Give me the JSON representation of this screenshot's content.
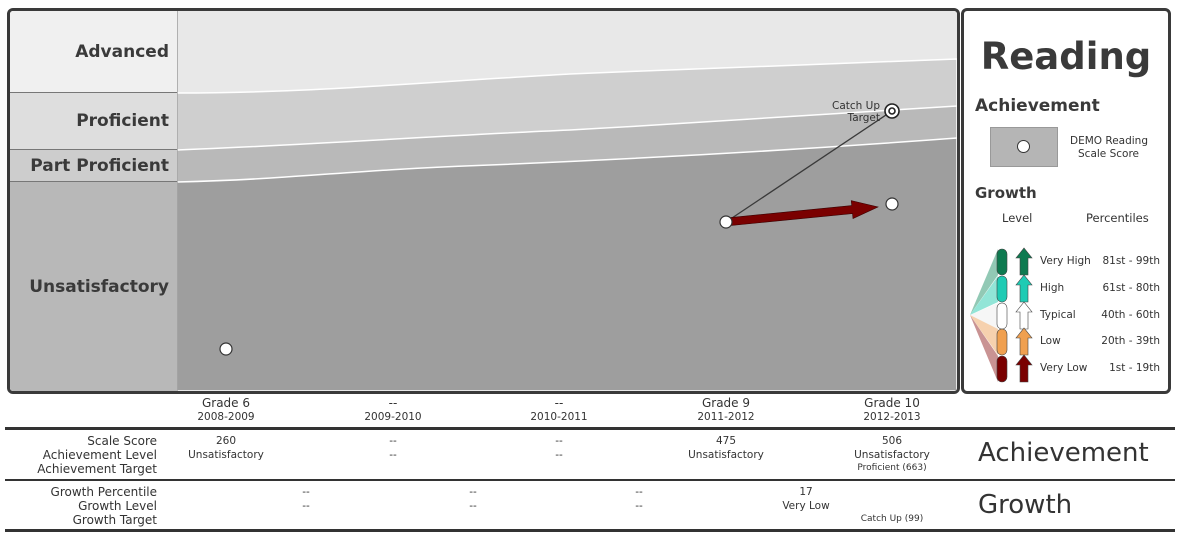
{
  "chart_data": {
    "type": "area",
    "title": "Reading",
    "bands": [
      {
        "name": "Advanced",
        "color": "#e8e8e8"
      },
      {
        "name": "Proficient",
        "color": "#cfcfcf"
      },
      {
        "name": "Part Proficient",
        "color": "#b9b9b9"
      },
      {
        "name": "Unsatisfactory",
        "color": "#9e9e9e"
      }
    ],
    "columns": [
      {
        "grade": "Grade 6",
        "year": "2008-2009"
      },
      {
        "grade": "--",
        "year": "2009-2010"
      },
      {
        "grade": "--",
        "year": "2010-2011"
      },
      {
        "grade": "Grade 9",
        "year": "2011-2012"
      },
      {
        "grade": "Grade 10",
        "year": "2012-2013"
      }
    ],
    "scores": [
      {
        "column": 0,
        "score": 260
      },
      {
        "column": 3,
        "score": 475
      },
      {
        "column": 4,
        "score": 506
      }
    ],
    "catch_up_target": {
      "column": 4,
      "score": 663,
      "label": "Catch Up Target"
    },
    "growth_arrow": {
      "from_column": 3,
      "to_column": 4,
      "level": "Very Low",
      "color": "#7a0000"
    }
  },
  "legend": {
    "title": "Reading",
    "achievement_heading": "Achievement",
    "score_label_line1": "DEMO Reading",
    "score_label_line2": "Scale Score",
    "growth_heading": "Growth",
    "level_header": "Level",
    "percentiles_header": "Percentiles",
    "levels": [
      {
        "name": "Very High",
        "range": "81st  - 99th",
        "color": "#0e7a50"
      },
      {
        "name": "High",
        "range": "61st - 80th",
        "color": "#1fcbb4"
      },
      {
        "name": "Typical",
        "range": "40th - 60th",
        "color": "#ffffff"
      },
      {
        "name": "Low",
        "range": "20th - 39th",
        "color": "#f0a050"
      },
      {
        "name": "Very Low",
        "range": "1st - 19th",
        "color": "#7a0000"
      }
    ]
  },
  "table": {
    "achievement_title": "Achievement",
    "growth_title": "Growth",
    "achievement_rows": [
      "Scale Score",
      "Achievement Level",
      "Achievement Target"
    ],
    "growth_rows": [
      "Growth Percentile",
      "Growth Level",
      "Growth Target"
    ],
    "scale_score": [
      "260",
      "--",
      "--",
      "475",
      "506"
    ],
    "achievement_level": [
      "Unsatisfactory",
      "--",
      "--",
      "Unsatisfactory",
      "Unsatisfactory"
    ],
    "achievement_target": [
      "",
      "",
      "",
      "",
      "Proficient (663)"
    ],
    "growth_percentile": [
      "--",
      "--",
      "--",
      "17"
    ],
    "growth_level": [
      "--",
      "--",
      "--",
      "Very Low"
    ],
    "growth_target": [
      "",
      "",
      "",
      "",
      "Catch Up (99)"
    ]
  }
}
